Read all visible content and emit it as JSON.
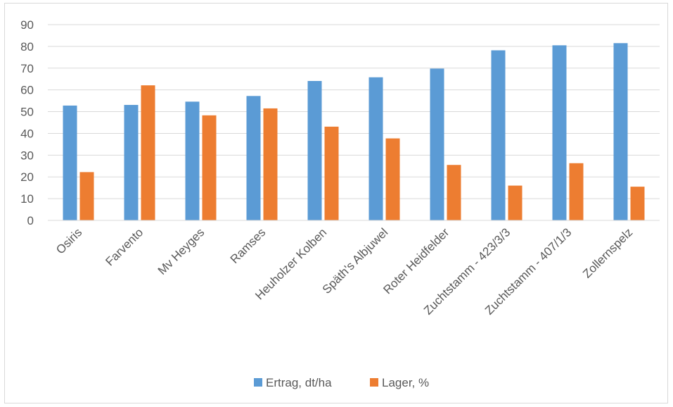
{
  "chart_data": {
    "type": "bar",
    "categories": [
      "Osiris",
      "Farvento",
      "Mv Heyges",
      "Ramses",
      "Heuholzer Kolben",
      "Späth's Albjuwel",
      "Roter Heidfelder",
      "Zuchtstamm - 423/3/3",
      "Zuchtstamm - 407/1/3",
      "Zollernspelz"
    ],
    "series": [
      {
        "name": "Ertrag, dt/ha",
        "color": "#5b9bd5",
        "values": [
          52.8,
          53.1,
          54.6,
          57.2,
          64.1,
          65.8,
          69.8,
          78.2,
          80.5,
          81.5
        ]
      },
      {
        "name": "Lager, %",
        "color": "#ed7d31",
        "values": [
          22.2,
          62.1,
          48.3,
          51.5,
          43.1,
          37.7,
          25.5,
          16.0,
          26.3,
          15.5
        ]
      }
    ],
    "ylim": [
      0,
      90
    ],
    "yticks": [
      "0",
      "10",
      "20",
      "30",
      "40",
      "50",
      "60",
      "70",
      "80",
      "90"
    ],
    "grid": true,
    "legend_position": "bottom"
  }
}
